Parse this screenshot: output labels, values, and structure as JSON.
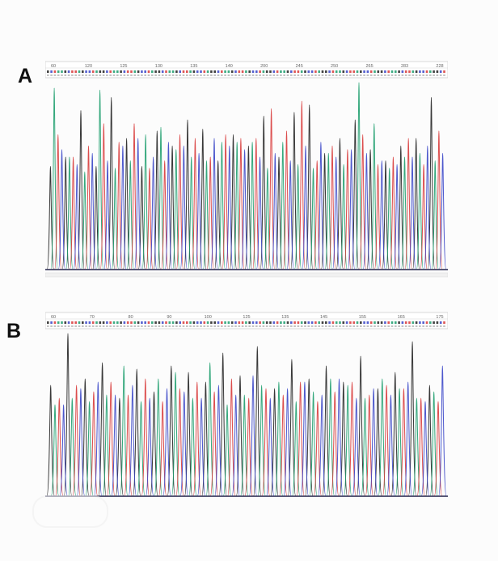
{
  "panels": [
    {
      "label": "A",
      "positions": [
        "60",
        "120",
        "125",
        "130",
        "135",
        "140",
        "200",
        "245",
        "250",
        "265",
        "283",
        "228"
      ]
    },
    {
      "label": "B",
      "positions": [
        "60",
        "70",
        "80",
        "90",
        "100",
        "125",
        "135",
        "145",
        "155",
        "165",
        "175"
      ]
    }
  ],
  "colors": {
    "A": "#1e9e6e",
    "C": "#3a46c8",
    "G": "#222222",
    "T": "#d83a3a",
    "baseline": "#22224a"
  },
  "chart_data": [
    {
      "type": "line",
      "title": "",
      "xlabel": "",
      "ylabel": "",
      "x_tick_labels": [
        "60",
        "120",
        "125",
        "130",
        "135",
        "140",
        "200",
        "245",
        "250",
        "265",
        "283",
        "228"
      ],
      "ylim": [
        0,
        100
      ],
      "series": [
        {
          "name": "",
          "base": "G",
          "values": [
            55,
            60,
            85,
            55,
            92,
            70,
            55,
            74,
            66,
            80,
            75,
            58,
            72,
            66,
            82,
            60,
            84,
            88,
            62,
            70,
            80,
            64,
            58,
            66,
            70,
            92
          ]
        },
        {
          "name": "",
          "base": "A",
          "values": [
            97,
            60,
            52,
            96,
            54,
            58,
            72,
            76,
            64,
            60,
            58,
            68,
            68,
            68,
            54,
            68,
            56,
            54,
            62,
            56,
            100,
            78,
            54,
            60,
            62,
            58
          ]
        },
        {
          "name": "",
          "base": "T",
          "values": [
            72,
            60,
            66,
            78,
            68,
            78,
            54,
            58,
            72,
            70,
            60,
            72,
            70,
            70,
            86,
            74,
            90,
            58,
            66,
            64,
            72,
            56,
            60,
            70,
            56,
            74
          ]
        },
        {
          "name": "",
          "base": "C",
          "values": [
            64,
            56,
            62,
            58,
            66,
            70,
            60,
            68,
            66,
            62,
            70,
            66,
            64,
            60,
            62,
            58,
            66,
            68,
            60,
            64,
            62,
            58,
            56,
            60,
            66,
            62
          ]
        }
      ]
    },
    {
      "type": "line",
      "title": "",
      "xlabel": "",
      "ylabel": "",
      "x_tick_labels": [
        "60",
        "70",
        "80",
        "90",
        "100",
        "125",
        "135",
        "145",
        "155",
        "165",
        "175"
      ],
      "ylim": [
        0,
        100
      ],
      "series": [
        {
          "name": "",
          "base": "G",
          "values": [
            68,
            100,
            72,
            82,
            60,
            78,
            64,
            80,
            76,
            70,
            88,
            74,
            92,
            66,
            84,
            72,
            80,
            70,
            86,
            66,
            76,
            95,
            68
          ]
        },
        {
          "name": "",
          "base": "A",
          "values": [
            56,
            60,
            58,
            62,
            80,
            58,
            72,
            76,
            60,
            82,
            56,
            62,
            68,
            70,
            58,
            64,
            72,
            68,
            60,
            72,
            66,
            60,
            64
          ]
        },
        {
          "name": "",
          "base": "T",
          "values": [
            60,
            68,
            64,
            70,
            62,
            72,
            58,
            66,
            70,
            64,
            72,
            60,
            66,
            62,
            70,
            58,
            64,
            70,
            62,
            68,
            66,
            60,
            58
          ]
        },
        {
          "name": "",
          "base": "C",
          "values": [
            56,
            66,
            70,
            62,
            68,
            60,
            66,
            64,
            60,
            68,
            62,
            74,
            60,
            66,
            70,
            62,
            72,
            60,
            66,
            62,
            70,
            58,
            80
          ]
        }
      ]
    }
  ]
}
